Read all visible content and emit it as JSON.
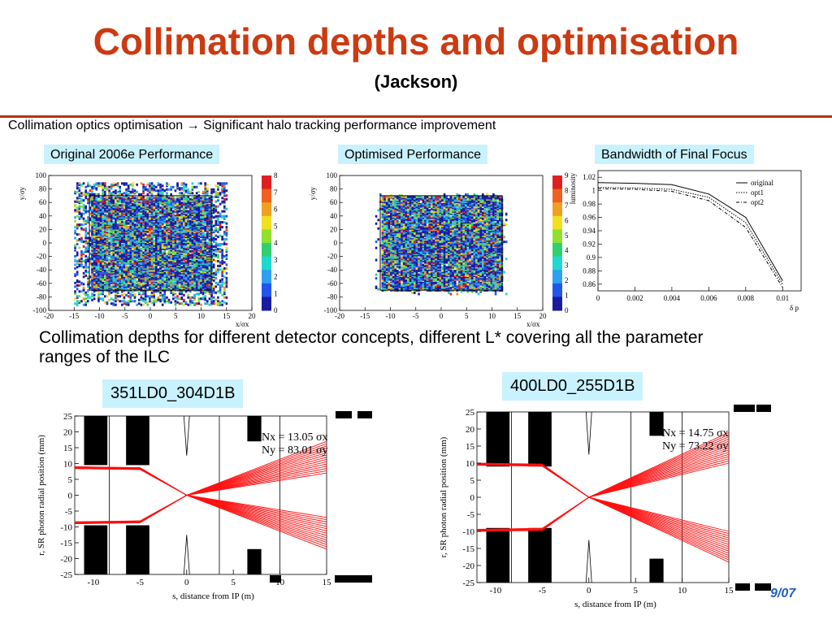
{
  "slide": {
    "title": "Collimation depths and optimisation",
    "subtitle": "(Jackson)",
    "intro": "Collimation optics optimisation → Significant halo tracking performance improvement",
    "body": "Collimation depths for different detector concepts, different L* covering all the parameter ranges of the ILC",
    "page_number": "9/07"
  },
  "captions": {
    "original": "Original 2006e Performance",
    "optimised": "Optimised Performance",
    "bandwidth": "Bandwidth of Final Focus"
  },
  "tags": {
    "left": "351LD0_304D1B",
    "right": "400LD0_255D1B"
  },
  "scatter_axes": {
    "x_label": "x/σx",
    "y_label": "y/σy",
    "x_ticks": [
      "-20",
      "-15",
      "-10",
      "-5",
      "0",
      "5",
      "10",
      "15",
      "20"
    ],
    "y_ticks": [
      "100",
      "80",
      "60",
      "40",
      "20",
      "0",
      "-20",
      "-40",
      "-60",
      "-80",
      "-100"
    ],
    "colorbar_original": [
      "8",
      "7",
      "6",
      "5",
      "4",
      "3",
      "2",
      "1",
      "0"
    ],
    "colorbar_optimised": [
      "9",
      "8",
      "7",
      "6",
      "5",
      "4",
      "3",
      "2",
      "1",
      "0"
    ],
    "palette": [
      "#1a1aa0",
      "#2255ee",
      "#2ea0f0",
      "#20d8d0",
      "#30d070",
      "#90e030",
      "#f0e020",
      "#f09020",
      "#e02020"
    ]
  },
  "chart_data": [
    {
      "type": "heatmap",
      "title": "Original 2006e Performance",
      "xlabel": "x/σx",
      "ylabel": "y/σy",
      "xlim": [
        -20,
        20
      ],
      "ylim": [
        -100,
        100
      ],
      "collimator_box": {
        "x": [
          -12,
          12
        ],
        "y": [
          -70,
          70
        ]
      }
    },
    {
      "type": "heatmap",
      "title": "Optimised Performance",
      "xlabel": "x/σx",
      "ylabel": "y/σy",
      "xlim": [
        -20,
        20
      ],
      "ylim": [
        -100,
        100
      ],
      "collimator_box": {
        "x": [
          -12,
          12
        ],
        "y": [
          -70,
          70
        ]
      }
    },
    {
      "type": "line",
      "title": "Bandwidth of Final Focus",
      "xlabel": "δ p",
      "ylabel": "luminosity",
      "xlim": [
        0,
        0.011
      ],
      "ylim": [
        0.85,
        1.03
      ],
      "x_ticks": [
        "0",
        "0.002",
        "0.004",
        "0.006",
        "0.008",
        "0.01"
      ],
      "y_ticks": [
        "1.02",
        "1",
        "0.98",
        "0.96",
        "0.94",
        "0.92",
        "0.9",
        "0.88",
        "0.86"
      ],
      "legend": "top-right",
      "series": [
        {
          "name": "original",
          "style": "solid",
          "x": [
            0,
            0.002,
            0.004,
            0.006,
            0.008,
            0.01
          ],
          "values": [
            1.012,
            1.011,
            1.009,
            0.995,
            0.96,
            0.865
          ]
        },
        {
          "name": "opt1",
          "style": "dotted",
          "x": [
            0,
            0.002,
            0.004,
            0.006,
            0.008,
            0.01
          ],
          "values": [
            1.005,
            1.004,
            1.002,
            0.99,
            0.952,
            0.86
          ]
        },
        {
          "name": "opt2",
          "style": "dashdot",
          "x": [
            0,
            0.002,
            0.004,
            0.006,
            0.008,
            0.01
          ],
          "values": [
            1.003,
            1.002,
            0.999,
            0.985,
            0.945,
            0.855
          ]
        }
      ]
    },
    {
      "type": "line",
      "title": "351LD0_304D1B",
      "xlabel": "s, distance from IP (m)",
      "ylabel": "r, SR photon radial position (mm)",
      "xlim": [
        -12,
        15
      ],
      "ylim": [
        -25,
        25
      ],
      "x_ticks": [
        "-10",
        "-5",
        "0",
        "5",
        "10",
        "15"
      ],
      "y_ticks": [
        "25",
        "20",
        "15",
        "10",
        "5",
        "0",
        "-5",
        "-10",
        "-15",
        "-20",
        "-25"
      ],
      "annotations": [
        "Nx = 13.05 σx",
        "Ny = 83.01 σy"
      ],
      "fan": {
        "waist_s": 0,
        "start_r": 9,
        "end_r_range": [
          7,
          17
        ]
      }
    },
    {
      "type": "line",
      "title": "400LD0_255D1B",
      "xlabel": "s, distance from IP (m)",
      "ylabel": "r, SR photon radial position (mm)",
      "xlim": [
        -12,
        15
      ],
      "ylim": [
        -25,
        25
      ],
      "x_ticks": [
        "-10",
        "-5",
        "0",
        "5",
        "10",
        "15"
      ],
      "y_ticks": [
        "25",
        "20",
        "15",
        "10",
        "5",
        "0",
        "-5",
        "-10",
        "-15",
        "-20",
        "-25"
      ],
      "annotations": [
        "Nx = 14.75 σx",
        "Ny = 73.22 σy"
      ],
      "fan": {
        "waist_s": 0,
        "start_r": 10,
        "end_r_range": [
          10,
          19
        ]
      }
    }
  ]
}
